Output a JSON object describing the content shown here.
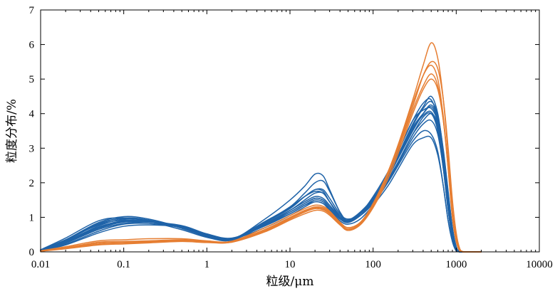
{
  "chart_data": {
    "type": "line",
    "xscale": "log",
    "xlabel": "粒级/μm",
    "ylabel": "粒度分布/%",
    "xlim": [
      0.01,
      10000
    ],
    "ylim": [
      0,
      7
    ],
    "xticks": [
      {
        "value": 0.01,
        "label": "0.01"
      },
      {
        "value": 0.1,
        "label": "0.1"
      },
      {
        "value": 1,
        "label": "1"
      },
      {
        "value": 10,
        "label": "10"
      },
      {
        "value": 100,
        "label": "100"
      },
      {
        "value": 1000,
        "label": "1000"
      },
      {
        "value": 10000,
        "label": "10000"
      }
    ],
    "yticks": [
      {
        "value": 0,
        "label": "0"
      },
      {
        "value": 1,
        "label": "1"
      },
      {
        "value": 2,
        "label": "2"
      },
      {
        "value": 3,
        "label": "3"
      },
      {
        "value": 4,
        "label": "4"
      },
      {
        "value": 5,
        "label": "5"
      },
      {
        "value": 6,
        "label": "6"
      },
      {
        "value": 7,
        "label": "7"
      }
    ],
    "grid": false,
    "legend": "none",
    "colors": {
      "blue_group": "#1f63a8",
      "orange_group": "#e67e32"
    },
    "x": [
      0.01,
      0.02,
      0.05,
      0.1,
      0.2,
      0.5,
      1,
      2,
      5,
      10,
      15,
      20,
      25,
      30,
      40,
      50,
      70,
      100,
      150,
      200,
      300,
      400,
      500,
      600,
      700,
      800,
      900,
      1000,
      1100,
      1200,
      1300,
      1500,
      2000
    ],
    "series": [
      {
        "group": "blue",
        "color": "#1f63a8",
        "values": [
          0.05,
          0.35,
          0.85,
          1.02,
          0.95,
          0.7,
          0.45,
          0.35,
          0.85,
          1.3,
          1.6,
          1.8,
          1.75,
          1.45,
          1.0,
          0.85,
          1.1,
          1.6,
          2.3,
          2.9,
          3.8,
          4.3,
          4.4,
          3.8,
          2.6,
          1.3,
          0.4,
          0.05,
          0,
          0,
          0,
          0,
          0
        ]
      },
      {
        "group": "blue",
        "color": "#1f63a8",
        "values": [
          0.05,
          0.3,
          0.75,
          0.95,
          0.9,
          0.72,
          0.48,
          0.36,
          0.95,
          1.5,
          1.9,
          2.25,
          2.2,
          1.8,
          1.15,
          0.9,
          1.15,
          1.55,
          2.2,
          2.8,
          3.7,
          4.2,
          4.5,
          4.0,
          2.9,
          1.6,
          0.6,
          0.1,
          0,
          0,
          0,
          0,
          0
        ]
      },
      {
        "group": "blue",
        "color": "#1f63a8",
        "values": [
          0.04,
          0.32,
          0.8,
          0.98,
          0.92,
          0.68,
          0.44,
          0.34,
          0.8,
          1.2,
          1.5,
          1.7,
          1.7,
          1.45,
          1.05,
          0.9,
          1.1,
          1.5,
          2.1,
          2.6,
          3.4,
          3.9,
          4.0,
          3.5,
          2.4,
          1.2,
          0.4,
          0.05,
          0,
          0,
          0,
          0,
          0
        ]
      },
      {
        "group": "blue",
        "color": "#1f63a8",
        "values": [
          0.06,
          0.4,
          0.9,
          0.98,
          0.88,
          0.64,
          0.42,
          0.34,
          0.78,
          1.1,
          1.35,
          1.5,
          1.45,
          1.25,
          0.95,
          0.85,
          1.05,
          1.45,
          2.0,
          2.5,
          3.2,
          3.5,
          3.4,
          2.9,
          1.9,
          0.9,
          0.3,
          0.03,
          0,
          0,
          0,
          0,
          0
        ]
      },
      {
        "group": "blue",
        "color": "#1f63a8",
        "values": [
          0.03,
          0.22,
          0.6,
          0.8,
          0.82,
          0.7,
          0.5,
          0.38,
          0.7,
          1.05,
          1.3,
          1.45,
          1.4,
          1.2,
          0.9,
          0.8,
          0.95,
          1.35,
          1.9,
          2.4,
          3.1,
          3.3,
          3.3,
          2.8,
          1.9,
          0.9,
          0.3,
          0.03,
          0,
          0,
          0,
          0,
          0
        ]
      },
      {
        "group": "blue",
        "color": "#1f63a8",
        "values": [
          0.05,
          0.28,
          0.7,
          0.88,
          0.88,
          0.74,
          0.5,
          0.37,
          0.85,
          1.25,
          1.6,
          1.8,
          1.8,
          1.55,
          1.1,
          0.95,
          1.1,
          1.5,
          2.2,
          2.8,
          3.6,
          4.0,
          4.2,
          3.8,
          2.9,
          1.7,
          0.7,
          0.15,
          0,
          0,
          0,
          0,
          0
        ]
      },
      {
        "group": "blue",
        "color": "#1f63a8",
        "values": [
          0.04,
          0.25,
          0.65,
          0.82,
          0.86,
          0.76,
          0.52,
          0.38,
          0.78,
          1.15,
          1.4,
          1.55,
          1.5,
          1.3,
          1.0,
          0.88,
          1.05,
          1.45,
          2.05,
          2.6,
          3.4,
          3.8,
          4.0,
          3.7,
          2.8,
          1.6,
          0.6,
          0.1,
          0,
          0,
          0,
          0,
          0
        ]
      },
      {
        "group": "blue",
        "color": "#1f63a8",
        "values": [
          0.05,
          0.33,
          0.82,
          0.97,
          0.9,
          0.7,
          0.46,
          0.35,
          0.82,
          1.2,
          1.45,
          1.6,
          1.55,
          1.35,
          1.0,
          0.92,
          1.15,
          1.55,
          2.15,
          2.7,
          3.5,
          4.0,
          4.25,
          3.85,
          2.8,
          1.5,
          0.5,
          0.08,
          0,
          0,
          0,
          0,
          0
        ]
      },
      {
        "group": "blue",
        "color": "#1f63a8",
        "values": [
          0.04,
          0.3,
          0.72,
          0.9,
          0.88,
          0.72,
          0.5,
          0.38,
          0.88,
          1.3,
          1.7,
          2.0,
          2.05,
          1.75,
          1.15,
          0.9,
          1.05,
          1.4,
          2.0,
          2.55,
          3.3,
          3.7,
          3.8,
          3.4,
          2.4,
          1.2,
          0.4,
          0.05,
          0,
          0,
          0,
          0,
          0
        ]
      },
      {
        "group": "blue",
        "color": "#1f63a8",
        "values": [
          0.03,
          0.2,
          0.55,
          0.74,
          0.78,
          0.72,
          0.52,
          0.4,
          0.75,
          1.1,
          1.35,
          1.45,
          1.4,
          1.22,
          0.95,
          0.88,
          1.1,
          1.55,
          2.25,
          2.9,
          3.8,
          4.1,
          4.15,
          3.75,
          2.85,
          1.6,
          0.55,
          0.08,
          0,
          0,
          0,
          0,
          0
        ]
      },
      {
        "group": "blue",
        "color": "#1f63a8",
        "values": [
          0.05,
          0.35,
          0.78,
          0.92,
          0.88,
          0.7,
          0.47,
          0.36,
          0.8,
          1.15,
          1.4,
          1.55,
          1.5,
          1.3,
          0.98,
          0.9,
          1.12,
          1.55,
          2.2,
          2.75,
          3.55,
          3.95,
          4.05,
          3.6,
          2.55,
          1.3,
          0.45,
          0.06,
          0,
          0,
          0,
          0,
          0
        ]
      },
      {
        "group": "blue",
        "color": "#1f63a8",
        "values": [
          0.04,
          0.27,
          0.68,
          0.86,
          0.86,
          0.72,
          0.49,
          0.37,
          0.86,
          1.28,
          1.6,
          1.75,
          1.7,
          1.45,
          1.05,
          0.92,
          1.12,
          1.52,
          2.18,
          2.75,
          3.65,
          4.15,
          4.35,
          3.95,
          2.95,
          1.75,
          0.7,
          0.15,
          0.01,
          0,
          0,
          0,
          0
        ]
      },
      {
        "group": "orange",
        "color": "#e67e32",
        "values": [
          0.03,
          0.12,
          0.28,
          0.3,
          0.32,
          0.35,
          0.3,
          0.3,
          0.65,
          1.0,
          1.2,
          1.3,
          1.28,
          1.15,
          0.85,
          0.7,
          0.85,
          1.4,
          2.3,
          3.1,
          4.4,
          5.4,
          6.05,
          5.6,
          4.4,
          2.8,
          1.2,
          0.4,
          0.05,
          0,
          0,
          0,
          0
        ]
      },
      {
        "group": "orange",
        "color": "#e67e32",
        "values": [
          0.02,
          0.1,
          0.22,
          0.25,
          0.28,
          0.32,
          0.28,
          0.28,
          0.6,
          0.95,
          1.15,
          1.25,
          1.22,
          1.1,
          0.8,
          0.65,
          0.8,
          1.3,
          2.2,
          3.0,
          4.2,
          5.1,
          5.5,
          5.3,
          4.4,
          3.0,
          1.5,
          0.55,
          0.1,
          0.01,
          0,
          0,
          0
        ]
      },
      {
        "group": "orange",
        "color": "#e67e32",
        "values": [
          0.03,
          0.15,
          0.32,
          0.35,
          0.38,
          0.38,
          0.32,
          0.31,
          0.7,
          1.05,
          1.25,
          1.35,
          1.32,
          1.18,
          0.86,
          0.7,
          0.85,
          1.35,
          2.25,
          3.05,
          4.3,
          5.1,
          5.4,
          5.0,
          3.9,
          2.4,
          1.0,
          0.3,
          0.03,
          0,
          0,
          0,
          0
        ]
      },
      {
        "group": "orange",
        "color": "#e67e32",
        "values": [
          0.02,
          0.11,
          0.25,
          0.28,
          0.3,
          0.34,
          0.29,
          0.29,
          0.62,
          0.98,
          1.18,
          1.28,
          1.25,
          1.12,
          0.82,
          0.66,
          0.82,
          1.32,
          2.2,
          2.95,
          4.1,
          4.8,
          5.15,
          4.8,
          3.8,
          2.4,
          1.0,
          0.3,
          0.03,
          0,
          0,
          0,
          0
        ]
      },
      {
        "group": "orange",
        "color": "#e67e32",
        "values": [
          0.02,
          0.09,
          0.2,
          0.23,
          0.26,
          0.3,
          0.27,
          0.28,
          0.58,
          0.92,
          1.1,
          1.2,
          1.18,
          1.06,
          0.78,
          0.62,
          0.78,
          1.28,
          2.1,
          2.85,
          4.0,
          4.7,
          5.0,
          4.7,
          3.8,
          2.5,
          1.1,
          0.35,
          0.04,
          0,
          0,
          0,
          0
        ]
      }
    ]
  }
}
